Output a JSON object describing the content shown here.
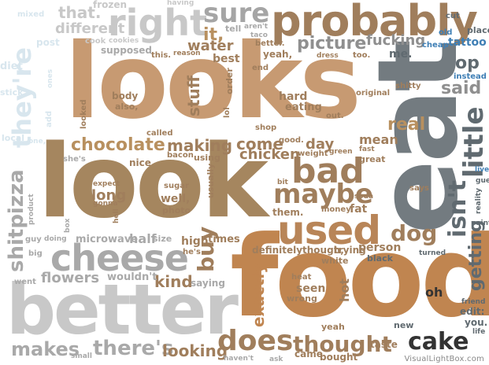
{
  "palette": {
    "tan": "#c49a72",
    "tan_light": "#d9b894",
    "brown": "#a07e5c",
    "brown_dark": "#8c6b4c",
    "orange_brown": "#c08550",
    "gray": "#8f8f8f",
    "gray_dark": "#606a70",
    "gray_light": "#c8c8c8",
    "blue": "#3f7fb5",
    "blue_light": "#8fb7d4",
    "charcoal": "#333333"
  },
  "words": {
    "looks": "looks",
    "look": "look",
    "food": "food",
    "better": "better",
    "eat": "eat",
    "probably": "probably",
    "right": "right",
    "sure": "sure",
    "cheese": "cheese",
    "bad": "bad",
    "used": "used",
    "maybe": "maybe",
    "chocolate": "chocolate",
    "making": "making",
    "come": "come",
    "chicken": "chicken",
    "picture": "picture",
    "fucking": "fucking",
    "water": "water",
    "stuff": "stuff",
    "little": "little",
    "isnt": "isn't",
    "theyre": "they're",
    "shitpizza": "shitpizza",
    "dog": "dog",
    "does": "does",
    "thought": "thought",
    "cake": "cake",
    "theres": "there's",
    "makes": "makes",
    "looking": "looking",
    "flowers": "flowers",
    "kind": "kind",
    "exactly": "exactly",
    "buy": "buy",
    "getting": "getting",
    "op": "op",
    "said": "said",
    "real": "real",
    "day": "day",
    "mean": "mean",
    "half": "half",
    "long": "long",
    "its": "it,",
    "that": "that.",
    "different": "different",
    "tattoo": "tattoo",
    "me": "me.",
    "hard": "hard",
    "eating": "eating",
    "best": "best",
    "body": "body",
    "well": "well,",
    "photo": "photo",
    "wouldnt": "wouldn't",
    "microwave": "microwave",
    "high": "high",
    "times": "times",
    "definitely": "definitely",
    "though": "though,",
    "trying": "trying",
    "person": "person",
    "black": "black",
    "white": "white",
    "hot": "hot",
    "seen": "seen",
    "wrong": "wrong",
    "heat": "heat",
    "yeah": "yeah",
    "came": "came",
    "bought": "bought",
    "taste": "taste",
    "new": "new",
    "oh": "oh",
    "edit": "edit:",
    "you": "you.",
    "friend": "friend",
    "life": "life",
    "sugar": "sugar",
    "expect": "expect",
    "gonna": "gonna",
    "nice": "nice",
    "bacon": "bacon",
    "using": "using",
    "usually": "usually",
    "called": "called",
    "shop": "shop",
    "good": "good.",
    "weight": "weight",
    "green": "green",
    "fast": "fast",
    "great": "great",
    "bit": "bit",
    "soda": "soda",
    "them": "them.",
    "money": "money",
    "fat": "fat",
    "says": "says",
    "guess": "guess",
    "live": "live",
    "reality": "reality",
    "paint": "paint",
    "instead": "instead",
    "shitty": "shitty",
    "original": "original",
    "out": "out.",
    "order": "order",
    "lol": "lol",
    "end": "end",
    "yeah2": "yeah,",
    "better2": "better.",
    "dress": "dress",
    "too": "too.",
    "cut": "cut",
    "old": "old",
    "cheap": "cheap",
    "place": "place",
    "supposed": "supposed",
    "this": "this.",
    "reason": "reason",
    "cook": "cook",
    "cookies": "cookies",
    "frozen": "frozen",
    "having": "having",
    "tell": "tell",
    "arent": "aren't",
    "taco": "taco",
    "also": "also,",
    "looked": "looked",
    "shes": "she's",
    "guy": "guy",
    "doing": "doing",
    "big": "big",
    "went": "went",
    "box": "box",
    "hell": "hell",
    "product": "product",
    "size": "size",
    "hes": "he's",
    "saying": "saying",
    "havent": "haven't",
    "ask": "ask",
    "small": "small",
    "turned": "turned",
    "post": "post",
    "local": "local",
    "one": "one,",
    "add": "add",
    "diet": "diet",
    "stick": "stick",
    "ones": "ones",
    "mixed": "mixed"
  },
  "watermark": "VisualLightBox.com"
}
